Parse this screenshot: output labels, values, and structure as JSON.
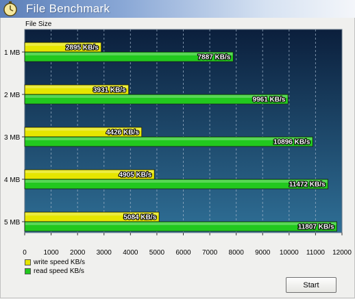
{
  "window": {
    "title": "File Benchmark"
  },
  "colors": {
    "write": "#e6e600",
    "read": "#22c81e",
    "plot_top": "#0b1f3c",
    "plot_bottom": "#2f6f96"
  },
  "chart_data": {
    "type": "bar",
    "orientation": "horizontal",
    "ylabel": "File Size",
    "categories": [
      "1 MB",
      "2 MB",
      "3 MB",
      "4 MB",
      "5 MB"
    ],
    "series": [
      {
        "name": "write speed KB/s",
        "values": [
          2895,
          3931,
          4426,
          4905,
          5084
        ],
        "labels": [
          "2895 KB/s",
          "3931 KB/s",
          "4426 KB/s",
          "4905 KB/s",
          "5084 KB/s"
        ]
      },
      {
        "name": "read speed KB/s",
        "values": [
          7887,
          9961,
          10896,
          11472,
          11807
        ],
        "labels": [
          "7887 KB/s",
          "9961 KB/s",
          "10896 KB/s",
          "11472 KB/s",
          "11807 KB/s"
        ]
      }
    ],
    "xlim": [
      0,
      12000
    ],
    "xticks": [
      "0",
      "1000",
      "2000",
      "3000",
      "4000",
      "5000",
      "6000",
      "7000",
      "8000",
      "9000",
      "10000",
      "11000",
      "12000"
    ],
    "grid": true,
    "legend": "bottom-left"
  },
  "controls": {
    "start_label": "Start"
  }
}
